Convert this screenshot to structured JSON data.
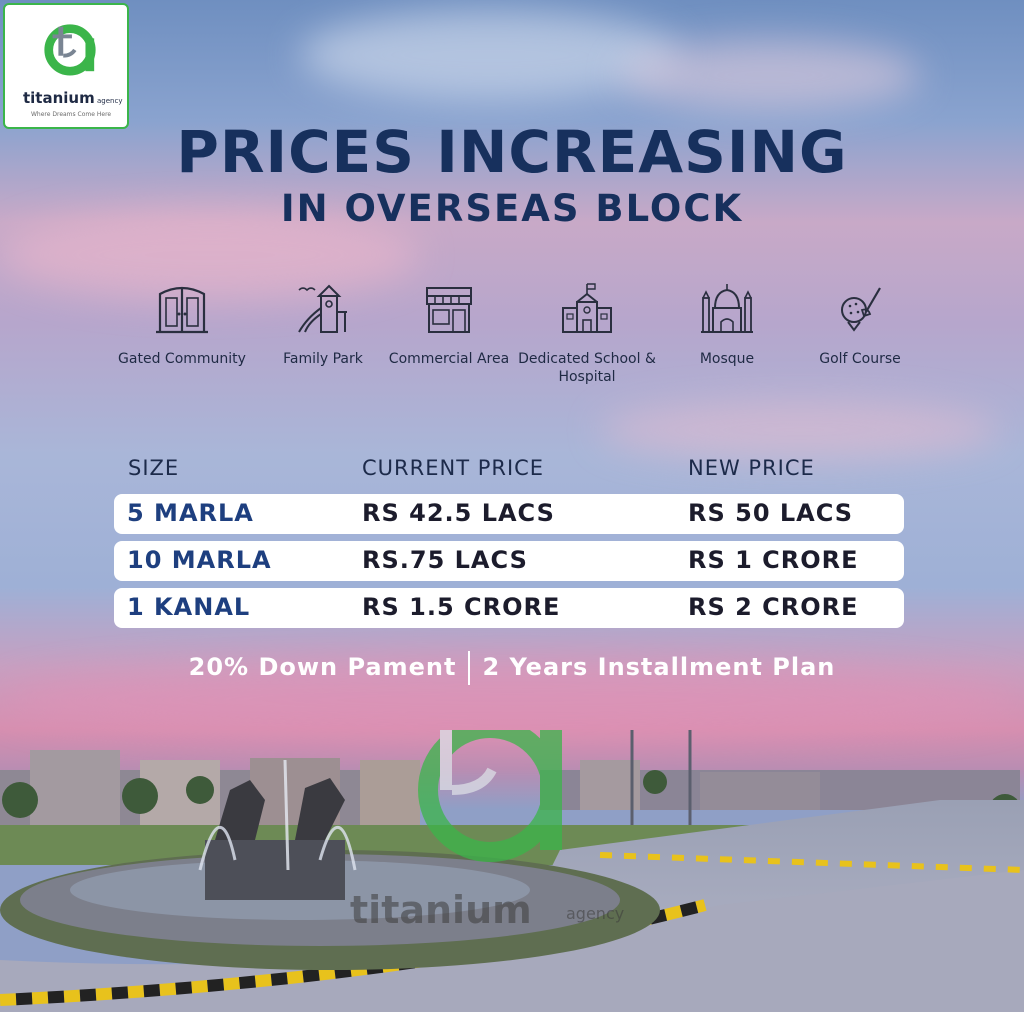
{
  "logo": {
    "name": "titanium",
    "suffix": "agency",
    "tagline": "Where Dreams Come Here"
  },
  "headline": {
    "line1": "PRICES INCREASING",
    "line2": "IN OVERSEAS BLOCK"
  },
  "features": [
    {
      "label": "Gated Community",
      "icon": "gate-icon"
    },
    {
      "label": "Family Park",
      "icon": "playground-icon"
    },
    {
      "label": "Commercial Area",
      "icon": "shop-icon"
    },
    {
      "label": "Dedicated School & Hospital",
      "icon": "school-icon"
    },
    {
      "label": "Mosque",
      "icon": "mosque-icon"
    },
    {
      "label": "Golf Course",
      "icon": "golf-icon"
    }
  ],
  "price_table": {
    "headers": {
      "size": "SIZE",
      "current": "CURRENT PRICE",
      "new": "NEW PRICE"
    },
    "rows": [
      {
        "size": "5 MARLA",
        "current": "RS 42.5 LACS",
        "new": "RS 50 LACS"
      },
      {
        "size": "10 MARLA",
        "current": "RS.75 LACS",
        "new": "RS 1 CRORE"
      },
      {
        "size": "1 KANAL",
        "current": "RS 1.5 CRORE",
        "new": "RS 2 CRORE"
      }
    ]
  },
  "payment_plan": {
    "down_payment": "20% Down Pament",
    "installment": "2 Years Installment Plan"
  },
  "watermark": {
    "name": "titanium",
    "suffix": "agency"
  },
  "colors": {
    "navy": "#17305d",
    "brand_green": "#3bb54a"
  }
}
